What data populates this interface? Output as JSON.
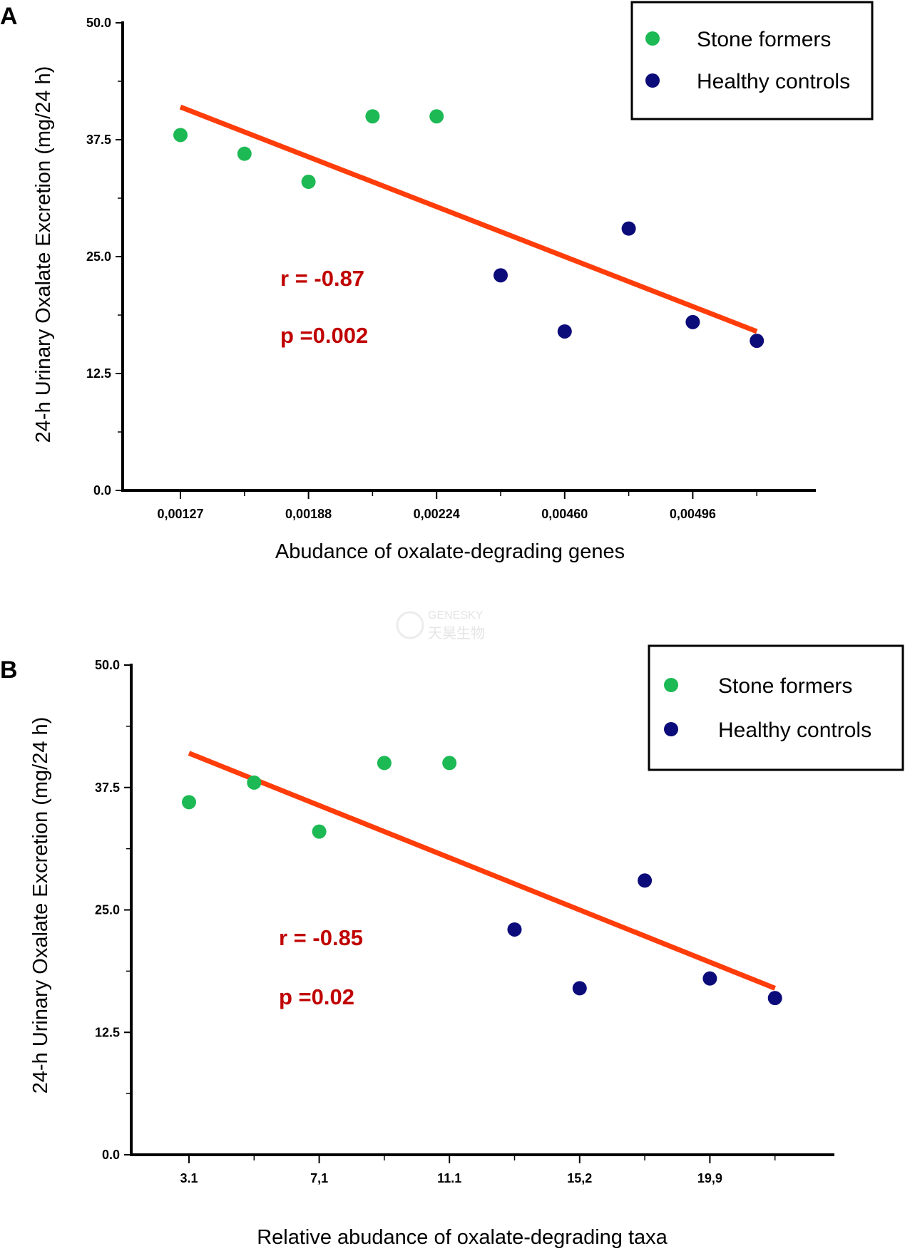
{
  "watermark": {
    "brand": "GENESKY",
    "brand_cn": "天昊生物"
  },
  "colors": {
    "stone": "#1db954",
    "healthy": "#0b0b7a",
    "fit_line": "#ff3d0a",
    "stats": "#c00000"
  },
  "panels": [
    {
      "label": "A",
      "ylabel": "24-h Urinary Oxalate Excretion (mg/24 h)",
      "xlabel": "Abudance of oxalate-degrading genes",
      "stat_r": "r = -0.87",
      "stat_p": "p =0.002",
      "legend": [
        "Stone formers",
        "Healthy controls"
      ]
    },
    {
      "label": "B",
      "ylabel": "24-h Urinary Oxalate Excretion (mg/24 h)",
      "xlabel": "Relative abudance of oxalate-degrading taxa",
      "stat_r": "r = -0.85",
      "stat_p": "p =0.02",
      "legend": [
        "Stone formers",
        "Healthy controls"
      ]
    }
  ],
  "chart_data": [
    {
      "type": "scatter",
      "xlabel": "Abudance of oxalate-degrading genes",
      "ylabel": "24-h Urinary Oxalate Excretion (mg/24 h)",
      "x_ticks": [
        "0,00127",
        "0,00188",
        "0,00224",
        "0,00460",
        "0,00496"
      ],
      "y_ticks": [
        "0.0",
        "12.5",
        "25.0",
        "37.5",
        "50.0"
      ],
      "ylim": [
        0,
        50
      ],
      "x_index_range": [
        0.1,
        10
      ],
      "legend_position": "top-right",
      "series": [
        {
          "name": "Stone formers",
          "color": "#1db954",
          "points": [
            [
              1,
              38
            ],
            [
              2,
              36
            ],
            [
              3,
              33
            ],
            [
              4,
              40
            ],
            [
              5,
              40
            ]
          ]
        },
        {
          "name": "Healthy controls",
          "color": "#0b0b7a",
          "points": [
            [
              6,
              23
            ],
            [
              7,
              17
            ],
            [
              8,
              28
            ],
            [
              9,
              18
            ],
            [
              10,
              16
            ]
          ]
        }
      ],
      "fit_line": {
        "from": [
          1,
          41
        ],
        "to": [
          10,
          17
        ]
      }
    },
    {
      "type": "scatter",
      "xlabel": "Relative abudance of oxalate-degrading taxa",
      "ylabel": "24-h Urinary Oxalate Excretion (mg/24 h)",
      "x_ticks": [
        "3.1",
        "7,1",
        "11.1",
        "15,2",
        "19,9"
      ],
      "y_ticks": [
        "0.0",
        "12.5",
        "25.0",
        "37.5",
        "50.0"
      ],
      "ylim": [
        0,
        50
      ],
      "x_index_range": [
        0.1,
        10.1
      ],
      "legend_position": "top-right",
      "series": [
        {
          "name": "Stone formers",
          "color": "#1db954",
          "points": [
            [
              1,
              36
            ],
            [
              2,
              38
            ],
            [
              3,
              33
            ],
            [
              4,
              40
            ],
            [
              5,
              40
            ]
          ]
        },
        {
          "name": "Healthy controls",
          "color": "#0b0b7a",
          "points": [
            [
              6,
              23
            ],
            [
              7,
              17
            ],
            [
              8,
              28
            ],
            [
              9,
              18
            ],
            [
              10,
              16
            ]
          ]
        }
      ],
      "fit_line": {
        "from": [
          1,
          41
        ],
        "to": [
          10,
          17
        ]
      }
    }
  ]
}
